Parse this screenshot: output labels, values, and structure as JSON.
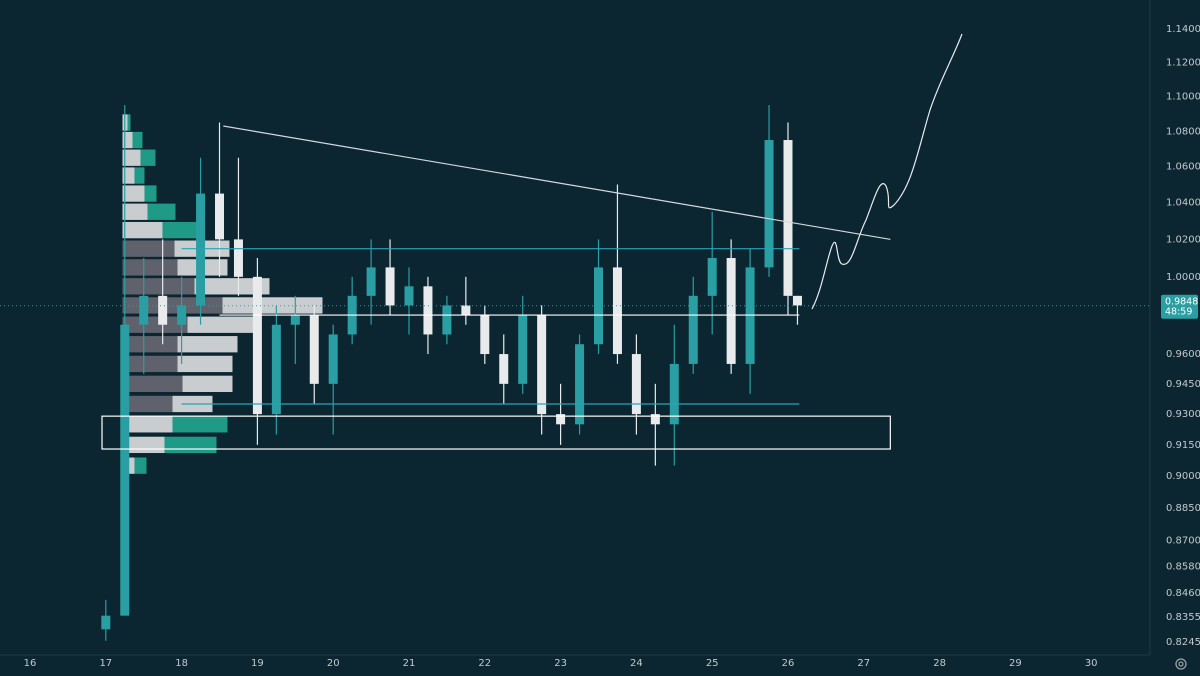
{
  "chart_data": {
    "type": "candlestick",
    "log_scale": true,
    "grid": false,
    "up_color": "#2a9fa3",
    "down_color": "#e8eaec",
    "xlim": [
      15.604,
      30.776
    ],
    "xticks": [
      16,
      17,
      18,
      19,
      20,
      21,
      22,
      23,
      24,
      25,
      26,
      27,
      28,
      29,
      30
    ],
    "ylim": [
      0.8188,
      1.1576
    ],
    "yticks": [
      {
        "value": 1.14,
        "label": "1.1400"
      },
      {
        "value": 1.12,
        "label": "1.1200"
      },
      {
        "value": 1.1,
        "label": "1.1000"
      },
      {
        "value": 1.08,
        "label": "1.0800"
      },
      {
        "value": 1.06,
        "label": "1.0600"
      },
      {
        "value": 1.04,
        "label": "1.0400"
      },
      {
        "value": 1.02,
        "label": "1.0200"
      },
      {
        "value": 1.0,
        "label": "1.0000"
      },
      {
        "value": 0.96,
        "label": "0.9600"
      },
      {
        "value": 0.945,
        "label": "0.9450"
      },
      {
        "value": 0.93,
        "label": "0.9300"
      },
      {
        "value": 0.915,
        "label": "0.9150"
      },
      {
        "value": 0.9,
        "label": "0.9000"
      },
      {
        "value": 0.885,
        "label": "0.8850"
      },
      {
        "value": 0.87,
        "label": "0.8700"
      },
      {
        "value": 0.858,
        "label": "0.8580"
      },
      {
        "value": 0.846,
        "label": "0.8460"
      },
      {
        "value": 0.8355,
        "label": "0.8355"
      },
      {
        "value": 0.8245,
        "label": "0.8245"
      }
    ],
    "x": [
      17.0,
      17.25,
      17.5,
      17.75,
      18.0,
      18.25,
      18.5,
      18.75,
      19.0,
      19.25,
      19.5,
      19.75,
      20.0,
      20.25,
      20.5,
      20.75,
      21.0,
      21.25,
      21.5,
      21.75,
      22.0,
      22.25,
      22.5,
      22.75,
      23.0,
      23.25,
      23.5,
      23.75,
      24.0,
      24.25,
      24.5,
      24.75,
      25.0,
      25.25,
      25.5,
      25.75,
      26.0,
      26.125
    ],
    "open": [
      0.83,
      0.836,
      0.975,
      0.99,
      0.975,
      0.985,
      1.045,
      1.02,
      1.0,
      0.93,
      0.975,
      0.98,
      0.945,
      0.97,
      0.99,
      1.005,
      0.985,
      0.995,
      0.97,
      0.985,
      0.98,
      0.96,
      0.945,
      0.98,
      0.93,
      0.925,
      0.965,
      1.005,
      0.96,
      0.93,
      0.925,
      0.955,
      0.99,
      1.01,
      0.955,
      1.005,
      1.075,
      0.99
    ],
    "high": [
      0.843,
      1.095,
      1.01,
      1.02,
      1.0,
      1.065,
      1.085,
      1.065,
      1.01,
      0.985,
      0.99,
      0.985,
      0.975,
      1.0,
      1.02,
      1.02,
      1.005,
      1.0,
      0.99,
      1.0,
      0.985,
      0.97,
      0.99,
      0.985,
      0.945,
      0.97,
      1.02,
      1.05,
      0.97,
      0.945,
      0.975,
      1.0,
      1.035,
      1.02,
      1.015,
      1.095,
      1.085,
      0.99
    ],
    "low": [
      0.825,
      0.836,
      0.95,
      0.965,
      0.955,
      0.975,
      1.0,
      0.99,
      0.915,
      0.92,
      0.955,
      0.935,
      0.92,
      0.965,
      0.975,
      0.98,
      0.97,
      0.96,
      0.965,
      0.975,
      0.955,
      0.935,
      0.94,
      0.92,
      0.915,
      0.92,
      0.96,
      0.955,
      0.92,
      0.905,
      0.905,
      0.95,
      0.97,
      0.95,
      0.94,
      1.0,
      0.98,
      0.975
    ],
    "close": [
      0.836,
      0.975,
      0.99,
      0.975,
      0.985,
      1.045,
      1.02,
      1.0,
      0.93,
      0.975,
      0.98,
      0.945,
      0.97,
      0.99,
      1.005,
      0.985,
      0.995,
      0.97,
      0.985,
      0.98,
      0.96,
      0.945,
      0.98,
      0.93,
      0.925,
      0.965,
      1.005,
      0.96,
      0.93,
      0.925,
      0.955,
      0.99,
      1.01,
      0.955,
      1.005,
      1.075,
      0.99,
      0.985
    ],
    "volume_profile": {
      "x": 17.22,
      "levels": [
        1.085,
        1.075,
        1.065,
        1.055,
        1.045,
        1.035,
        1.025,
        1.015,
        1.005,
        0.995,
        0.985,
        0.975,
        0.965,
        0.955,
        0.945,
        0.935,
        0.925,
        0.915,
        0.905
      ],
      "segments": [
        {
          "color": "#5f626c",
          "values": [
            0,
            0,
            0,
            0,
            0,
            0,
            0,
            52,
            55,
            72,
            100,
            65,
            55,
            55,
            60,
            50,
            0,
            0,
            0
          ]
        },
        {
          "color": "#c9cdd0",
          "values": [
            5,
            10,
            18,
            12,
            22,
            25,
            40,
            55,
            50,
            75,
            100,
            70,
            60,
            55,
            50,
            40,
            50,
            42,
            12
          ]
        },
        {
          "color": "#1f9a86",
          "values": [
            3,
            10,
            15,
            10,
            12,
            28,
            35,
            0,
            0,
            0,
            0,
            0,
            0,
            0,
            0,
            0,
            55,
            52,
            12
          ]
        }
      ]
    },
    "lines": [
      {
        "color": "#d6d9dc",
        "x": [
          18.55,
          27.35
        ],
        "y": [
          1.083,
          1.02
        ]
      },
      {
        "color": "#2aa3b3",
        "x": [
          18.0,
          26.15
        ],
        "y": [
          1.015,
          1.015
        ]
      },
      {
        "color": "#2aa3b3",
        "x": [
          18.0,
          26.15
        ],
        "y": [
          0.935,
          0.935
        ]
      },
      {
        "color": "#ffffff",
        "x": [
          18.5,
          26.15
        ],
        "y": [
          0.98,
          0.98
        ]
      }
    ],
    "box": {
      "color": "#ffffff",
      "x": [
        16.95,
        27.35
      ],
      "y": [
        0.929,
        0.913
      ]
    },
    "last_price": 0.9848,
    "countdown": "48:59"
  }
}
